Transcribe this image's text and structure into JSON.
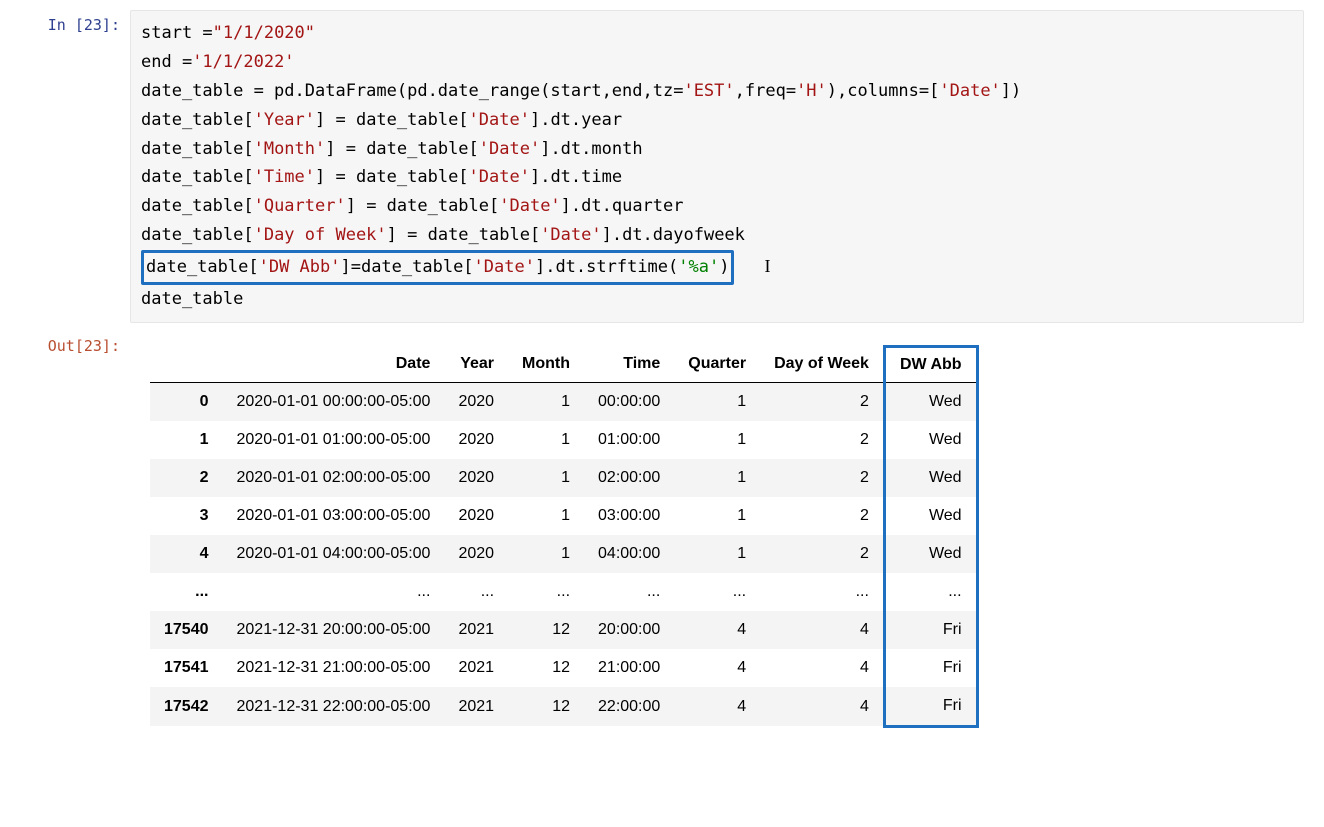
{
  "input": {
    "prompt": "In [23]:",
    "lines": [
      [
        {
          "t": "plain",
          "v": "start ="
        },
        {
          "t": "str",
          "v": "\"1/1/2020\""
        }
      ],
      [
        {
          "t": "plain",
          "v": "end ="
        },
        {
          "t": "str",
          "v": "'1/1/2022'"
        }
      ],
      [
        {
          "t": "plain",
          "v": "date_table = pd.DataFrame(pd.date_range(start,end,tz="
        },
        {
          "t": "str",
          "v": "'EST'"
        },
        {
          "t": "plain",
          "v": ",freq="
        },
        {
          "t": "str",
          "v": "'H'"
        },
        {
          "t": "plain",
          "v": "),columns=["
        },
        {
          "t": "str",
          "v": "'Date'"
        },
        {
          "t": "plain",
          "v": "])"
        }
      ],
      [
        {
          "t": "plain",
          "v": "date_table["
        },
        {
          "t": "str",
          "v": "'Year'"
        },
        {
          "t": "plain",
          "v": "] = date_table["
        },
        {
          "t": "str",
          "v": "'Date'"
        },
        {
          "t": "plain",
          "v": "].dt.year"
        }
      ],
      [
        {
          "t": "plain",
          "v": "date_table["
        },
        {
          "t": "str",
          "v": "'Month'"
        },
        {
          "t": "plain",
          "v": "] = date_table["
        },
        {
          "t": "str",
          "v": "'Date'"
        },
        {
          "t": "plain",
          "v": "].dt.month"
        }
      ],
      [
        {
          "t": "plain",
          "v": "date_table["
        },
        {
          "t": "str",
          "v": "'Time'"
        },
        {
          "t": "plain",
          "v": "] = date_table["
        },
        {
          "t": "str",
          "v": "'Date'"
        },
        {
          "t": "plain",
          "v": "].dt.time"
        }
      ],
      [
        {
          "t": "plain",
          "v": "date_table["
        },
        {
          "t": "str",
          "v": "'Quarter'"
        },
        {
          "t": "plain",
          "v": "] = date_table["
        },
        {
          "t": "str",
          "v": "'Date'"
        },
        {
          "t": "plain",
          "v": "].dt.quarter"
        }
      ],
      [
        {
          "t": "plain",
          "v": "date_table["
        },
        {
          "t": "str",
          "v": "'Day of Week'"
        },
        {
          "t": "plain",
          "v": "] = date_table["
        },
        {
          "t": "str",
          "v": "'Date'"
        },
        {
          "t": "plain",
          "v": "].dt.dayofweek"
        }
      ],
      [
        {
          "t": "hl-start"
        },
        {
          "t": "plain",
          "v": "date_table["
        },
        {
          "t": "str",
          "v": "'DW Abb'"
        },
        {
          "t": "plain",
          "v": "]=date_table["
        },
        {
          "t": "str",
          "v": "'Date'"
        },
        {
          "t": "plain",
          "v": "].dt.strftime("
        },
        {
          "t": "num",
          "v": "'%a'"
        },
        {
          "t": "plain",
          "v": ")"
        },
        {
          "t": "hl-end"
        },
        {
          "t": "cursor"
        }
      ],
      [
        {
          "t": "plain",
          "v": "date_table"
        }
      ]
    ]
  },
  "output": {
    "prompt": "Out[23]:",
    "table": {
      "columns": [
        "Date",
        "Year",
        "Month",
        "Time",
        "Quarter",
        "Day of Week",
        "DW Abb"
      ],
      "highlight_col": 6,
      "rows": [
        {
          "idx": "0",
          "cells": [
            "2020-01-01 00:00:00-05:00",
            "2020",
            "1",
            "00:00:00",
            "1",
            "2",
            "Wed"
          ]
        },
        {
          "idx": "1",
          "cells": [
            "2020-01-01 01:00:00-05:00",
            "2020",
            "1",
            "01:00:00",
            "1",
            "2",
            "Wed"
          ]
        },
        {
          "idx": "2",
          "cells": [
            "2020-01-01 02:00:00-05:00",
            "2020",
            "1",
            "02:00:00",
            "1",
            "2",
            "Wed"
          ]
        },
        {
          "idx": "3",
          "cells": [
            "2020-01-01 03:00:00-05:00",
            "2020",
            "1",
            "03:00:00",
            "1",
            "2",
            "Wed"
          ]
        },
        {
          "idx": "4",
          "cells": [
            "2020-01-01 04:00:00-05:00",
            "2020",
            "1",
            "04:00:00",
            "1",
            "2",
            "Wed"
          ]
        },
        {
          "idx": "...",
          "cells": [
            "...",
            "...",
            "...",
            "...",
            "...",
            "...",
            "..."
          ]
        },
        {
          "idx": "17540",
          "cells": [
            "2021-12-31 20:00:00-05:00",
            "2021",
            "12",
            "20:00:00",
            "4",
            "4",
            "Fri"
          ]
        },
        {
          "idx": "17541",
          "cells": [
            "2021-12-31 21:00:00-05:00",
            "2021",
            "12",
            "21:00:00",
            "4",
            "4",
            "Fri"
          ]
        },
        {
          "idx": "17542",
          "cells": [
            "2021-12-31 22:00:00-05:00",
            "2021",
            "12",
            "22:00:00",
            "4",
            "4",
            "Fri"
          ]
        }
      ]
    }
  }
}
